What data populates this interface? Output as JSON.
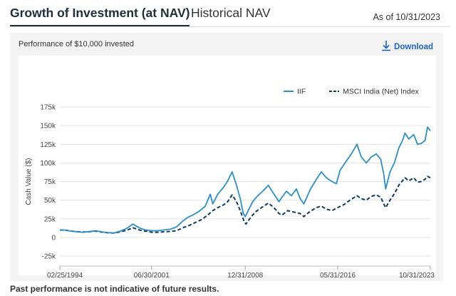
{
  "tabs": {
    "active": "Growth of Investment (at NAV)",
    "inactive": "Historical NAV"
  },
  "as_of": "As of 10/31/2023",
  "performance_label": "Performance of $10,000 invested",
  "download_label": "Download",
  "footnote": "Past performance is not indicative of future results.",
  "colors": {
    "iif": "#2a8fc7",
    "msci": "#0d3b66",
    "link": "#1b63c9"
  },
  "chart_data": {
    "type": "line",
    "title": "",
    "xlabel": "",
    "ylabel": "Cash Value ($)",
    "ylim": [
      -25000,
      175000
    ],
    "xlim": [
      1994.15,
      2023.83
    ],
    "y_ticks": [
      -25000,
      0,
      25000,
      50000,
      75000,
      100000,
      125000,
      150000,
      175000
    ],
    "y_tick_labels": [
      "-25k",
      "0",
      "25k",
      "50k",
      "75k",
      "100k",
      "125k",
      "150k",
      "175k"
    ],
    "x_ticks": [
      1994.15,
      2001.5,
      2009.0,
      2016.41,
      2023.83
    ],
    "x_tick_labels": [
      "02/25/1994",
      "06/30/2001",
      "12/31/2008",
      "05/31/2016",
      "10/31/2023"
    ],
    "grid": "horizontal",
    "legend_position": "top-right",
    "series": [
      {
        "name": "IIF",
        "style": "solid",
        "x": [
          1994.15,
          1994.6,
          1995.0,
          1995.5,
          1996.0,
          1996.5,
          1997.0,
          1997.5,
          1998.0,
          1998.5,
          1999.0,
          1999.5,
          2000.0,
          2000.5,
          2001.0,
          2001.5,
          2002.0,
          2002.5,
          2003.0,
          2003.5,
          2004.0,
          2004.4,
          2004.8,
          2005.3,
          2005.8,
          2006.2,
          2006.4,
          2006.8,
          2007.3,
          2007.6,
          2007.95,
          2008.3,
          2008.6,
          2008.85,
          2009.0,
          2009.3,
          2009.6,
          2009.95,
          2010.4,
          2010.85,
          2011.3,
          2011.7,
          2011.95,
          2012.3,
          2012.7,
          2013.1,
          2013.4,
          2013.7,
          2014.2,
          2014.7,
          2015.1,
          2015.5,
          2015.95,
          2016.3,
          2016.6,
          2017.0,
          2017.5,
          2017.95,
          2018.3,
          2018.7,
          2019.1,
          2019.5,
          2019.85,
          2020.1,
          2020.25,
          2020.6,
          2020.95,
          2021.3,
          2021.6,
          2021.8,
          2022.1,
          2022.5,
          2022.8,
          2023.1,
          2023.4,
          2023.6,
          2023.83
        ],
        "values": [
          10000,
          9800,
          8500,
          7500,
          7000,
          7800,
          9000,
          7500,
          6500,
          6000,
          8500,
          12000,
          18000,
          13000,
          10000,
          9000,
          9000,
          10000,
          11000,
          14000,
          22000,
          27000,
          30000,
          35000,
          42000,
          58000,
          45000,
          58000,
          68000,
          76000,
          88000,
          70000,
          52000,
          32000,
          28000,
          38000,
          48000,
          55000,
          62000,
          70000,
          58000,
          48000,
          54000,
          62000,
          56000,
          65000,
          52000,
          45000,
          64000,
          78000,
          88000,
          80000,
          75000,
          72000,
          90000,
          100000,
          112000,
          125000,
          108000,
          100000,
          108000,
          112000,
          105000,
          85000,
          65000,
          88000,
          100000,
          120000,
          130000,
          140000,
          132000,
          138000,
          125000,
          126000,
          130000,
          148000,
          143000
        ]
      },
      {
        "name": "MSCI India (Net) Index",
        "style": "dashed",
        "x": [
          1994.15,
          1994.6,
          1995.0,
          1995.5,
          1996.0,
          1996.5,
          1997.0,
          1997.5,
          1998.0,
          1998.5,
          1999.0,
          1999.5,
          2000.0,
          2000.5,
          2001.0,
          2001.5,
          2002.0,
          2002.5,
          2003.0,
          2003.5,
          2004.0,
          2004.5,
          2005.0,
          2005.5,
          2006.0,
          2006.4,
          2006.8,
          2007.3,
          2007.6,
          2007.95,
          2008.3,
          2008.6,
          2008.9,
          2009.05,
          2009.4,
          2009.8,
          2010.3,
          2010.85,
          2011.3,
          2011.7,
          2011.95,
          2012.4,
          2012.9,
          2013.4,
          2013.7,
          2014.2,
          2014.7,
          2015.1,
          2015.5,
          2015.95,
          2016.4,
          2016.9,
          2017.4,
          2017.95,
          2018.3,
          2018.7,
          2019.1,
          2019.5,
          2019.85,
          2020.1,
          2020.25,
          2020.6,
          2021.0,
          2021.3,
          2021.6,
          2021.8,
          2022.1,
          2022.5,
          2022.8,
          2023.1,
          2023.4,
          2023.6,
          2023.83
        ],
        "values": [
          10000,
          9700,
          8600,
          7800,
          7200,
          7600,
          8500,
          7200,
          6200,
          5800,
          7500,
          9500,
          13000,
          10000,
          8500,
          7000,
          7000,
          7500,
          8000,
          9000,
          13000,
          16000,
          20000,
          24000,
          30000,
          36000,
          40000,
          44000,
          48000,
          57000,
          48000,
          36000,
          22000,
          18000,
          26000,
          34000,
          40000,
          46000,
          40000,
          32000,
          30000,
          36000,
          34000,
          32000,
          28000,
          35000,
          40000,
          42000,
          38000,
          36000,
          40000,
          44000,
          50000,
          56000,
          52000,
          50000,
          55000,
          57000,
          54000,
          45000,
          40000,
          50000,
          60000,
          70000,
          76000,
          80000,
          76000,
          80000,
          74000,
          75000,
          78000,
          82000,
          80000
        ]
      }
    ]
  }
}
